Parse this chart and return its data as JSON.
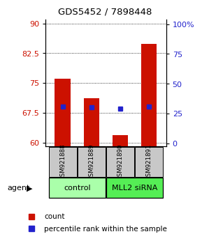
{
  "title": "GDS5452 / 7898448",
  "samples": [
    "GSM921888",
    "GSM921889",
    "GSM921890",
    "GSM921891"
  ],
  "red_values": [
    76.0,
    71.2,
    61.8,
    84.8
  ],
  "blue_values": [
    69.1,
    68.8,
    68.6,
    69.1
  ],
  "ylim_left": [
    59.0,
    91.0
  ],
  "yticks_left": [
    60,
    67.5,
    75,
    82.5,
    90
  ],
  "ytick_labels_left": [
    "60",
    "67.5",
    "75",
    "82.5",
    "90"
  ],
  "yticks_right": [
    0,
    25,
    50,
    75,
    100
  ],
  "ytick_labels_right": [
    "0",
    "25",
    "50",
    "75",
    "100%"
  ],
  "ylim_right": [
    -2.58,
    103.87
  ],
  "groups": [
    {
      "label": "control",
      "indices": [
        0,
        1
      ],
      "color": "#aaffaa"
    },
    {
      "label": "MLL2 siRNA",
      "indices": [
        2,
        3
      ],
      "color": "#55ee55"
    }
  ],
  "bar_color": "#cc1100",
  "blue_color": "#2222cc",
  "bar_width": 0.55,
  "label_bg": "#c8c8c8",
  "baseline": 59.0
}
